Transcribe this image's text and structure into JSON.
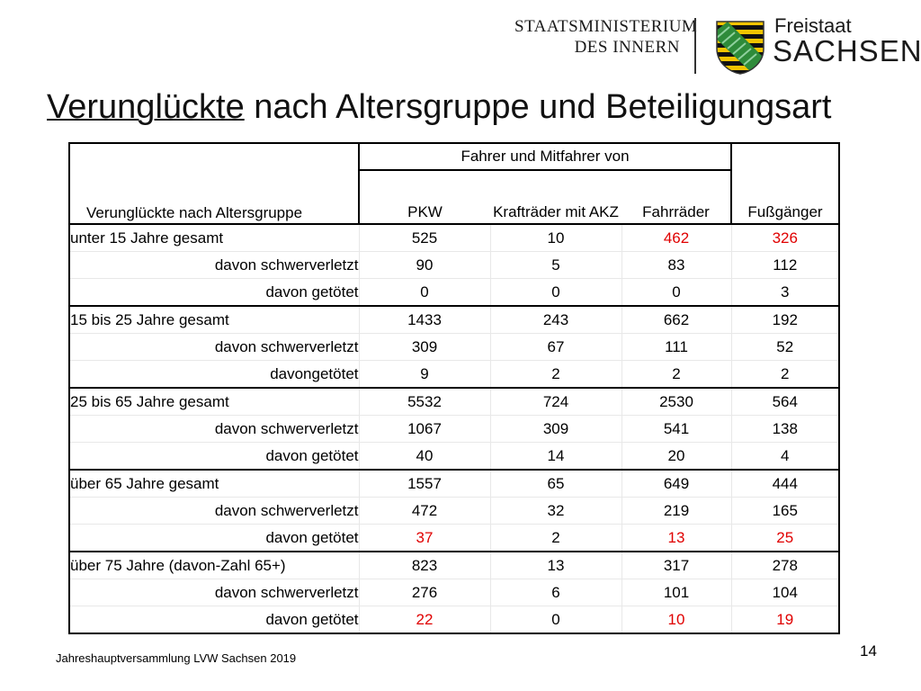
{
  "header": {
    "ministry_line1": "STAATSMINISTERIUM",
    "ministry_line2": "DES INNERN",
    "state_line1": "Freistaat",
    "state_line2": "SACHSEN"
  },
  "title": {
    "underlined": "Verunglückte",
    "rest": " nach Altersgruppe und Beteiligungsart"
  },
  "table": {
    "group_header": "Fahrer und Mitfahrer von",
    "row_header": "Verunglückte nach Altersgruppe",
    "columns": [
      "PKW",
      "Krafträder mit AKZ",
      "Fahrräder",
      "Fußgänger"
    ],
    "rows": [
      {
        "label": "unter 15 Jahre gesamt",
        "type": "main",
        "values": [
          "525",
          "10",
          "462",
          "326"
        ],
        "red": [
          false,
          false,
          true,
          true
        ]
      },
      {
        "label": "davon schwerverletzt",
        "type": "sub",
        "values": [
          "90",
          "5",
          "83",
          "112"
        ],
        "red": [
          false,
          false,
          false,
          false
        ]
      },
      {
        "label": "davon getötet",
        "type": "sub",
        "values": [
          "0",
          "0",
          "0",
          "3"
        ],
        "red": [
          false,
          false,
          false,
          false
        ]
      },
      {
        "label": "15 bis 25 Jahre gesamt",
        "type": "main",
        "values": [
          "1433",
          "243",
          "662",
          "192"
        ],
        "red": [
          false,
          false,
          false,
          false
        ]
      },
      {
        "label": "davon schwerverletzt",
        "type": "sub",
        "values": [
          "309",
          "67",
          "111",
          "52"
        ],
        "red": [
          false,
          false,
          false,
          false
        ]
      },
      {
        "label": "davongetötet",
        "type": "sub",
        "values": [
          "9",
          "2",
          "2",
          "2"
        ],
        "red": [
          false,
          false,
          false,
          false
        ]
      },
      {
        "label": "25 bis 65 Jahre gesamt",
        "type": "main",
        "values": [
          "5532",
          "724",
          "2530",
          "564"
        ],
        "red": [
          false,
          false,
          false,
          false
        ]
      },
      {
        "label": "davon schwerverletzt",
        "type": "sub",
        "values": [
          "1067",
          "309",
          "541",
          "138"
        ],
        "red": [
          false,
          false,
          false,
          false
        ]
      },
      {
        "label": "davon getötet",
        "type": "sub",
        "values": [
          "40",
          "14",
          "20",
          "4"
        ],
        "red": [
          false,
          false,
          false,
          false
        ]
      },
      {
        "label": "über 65 Jahre gesamt",
        "type": "main",
        "values": [
          "1557",
          "65",
          "649",
          "444"
        ],
        "red": [
          false,
          false,
          false,
          false
        ]
      },
      {
        "label": "davon schwerverletzt",
        "type": "sub",
        "values": [
          "472",
          "32",
          "219",
          "165"
        ],
        "red": [
          false,
          false,
          false,
          false
        ]
      },
      {
        "label": "davon getötet",
        "type": "sub",
        "values": [
          "37",
          "2",
          "13",
          "25"
        ],
        "red": [
          true,
          false,
          true,
          true
        ]
      },
      {
        "label": "über 75 Jahre (davon-Zahl 65+)",
        "type": "main",
        "values": [
          "823",
          "13",
          "317",
          "278"
        ],
        "red": [
          false,
          false,
          false,
          false
        ]
      },
      {
        "label": "davon schwerverletzt",
        "type": "sub",
        "values": [
          "276",
          "6",
          "101",
          "104"
        ],
        "red": [
          false,
          false,
          false,
          false
        ]
      },
      {
        "label": "davon getötet",
        "type": "sub",
        "values": [
          "22",
          "0",
          "10",
          "19"
        ],
        "red": [
          true,
          false,
          true,
          true
        ]
      }
    ]
  },
  "footer": {
    "text": "Jahreshauptversammlung LVW Sachsen 2019",
    "page_number": "14"
  },
  "colors": {
    "highlight_red": "#e00000",
    "coat_yellow": "#f2c400",
    "coat_green": "#2e8b3a"
  },
  "icons": {
    "logo": "saxony-coat-of-arms-icon"
  }
}
